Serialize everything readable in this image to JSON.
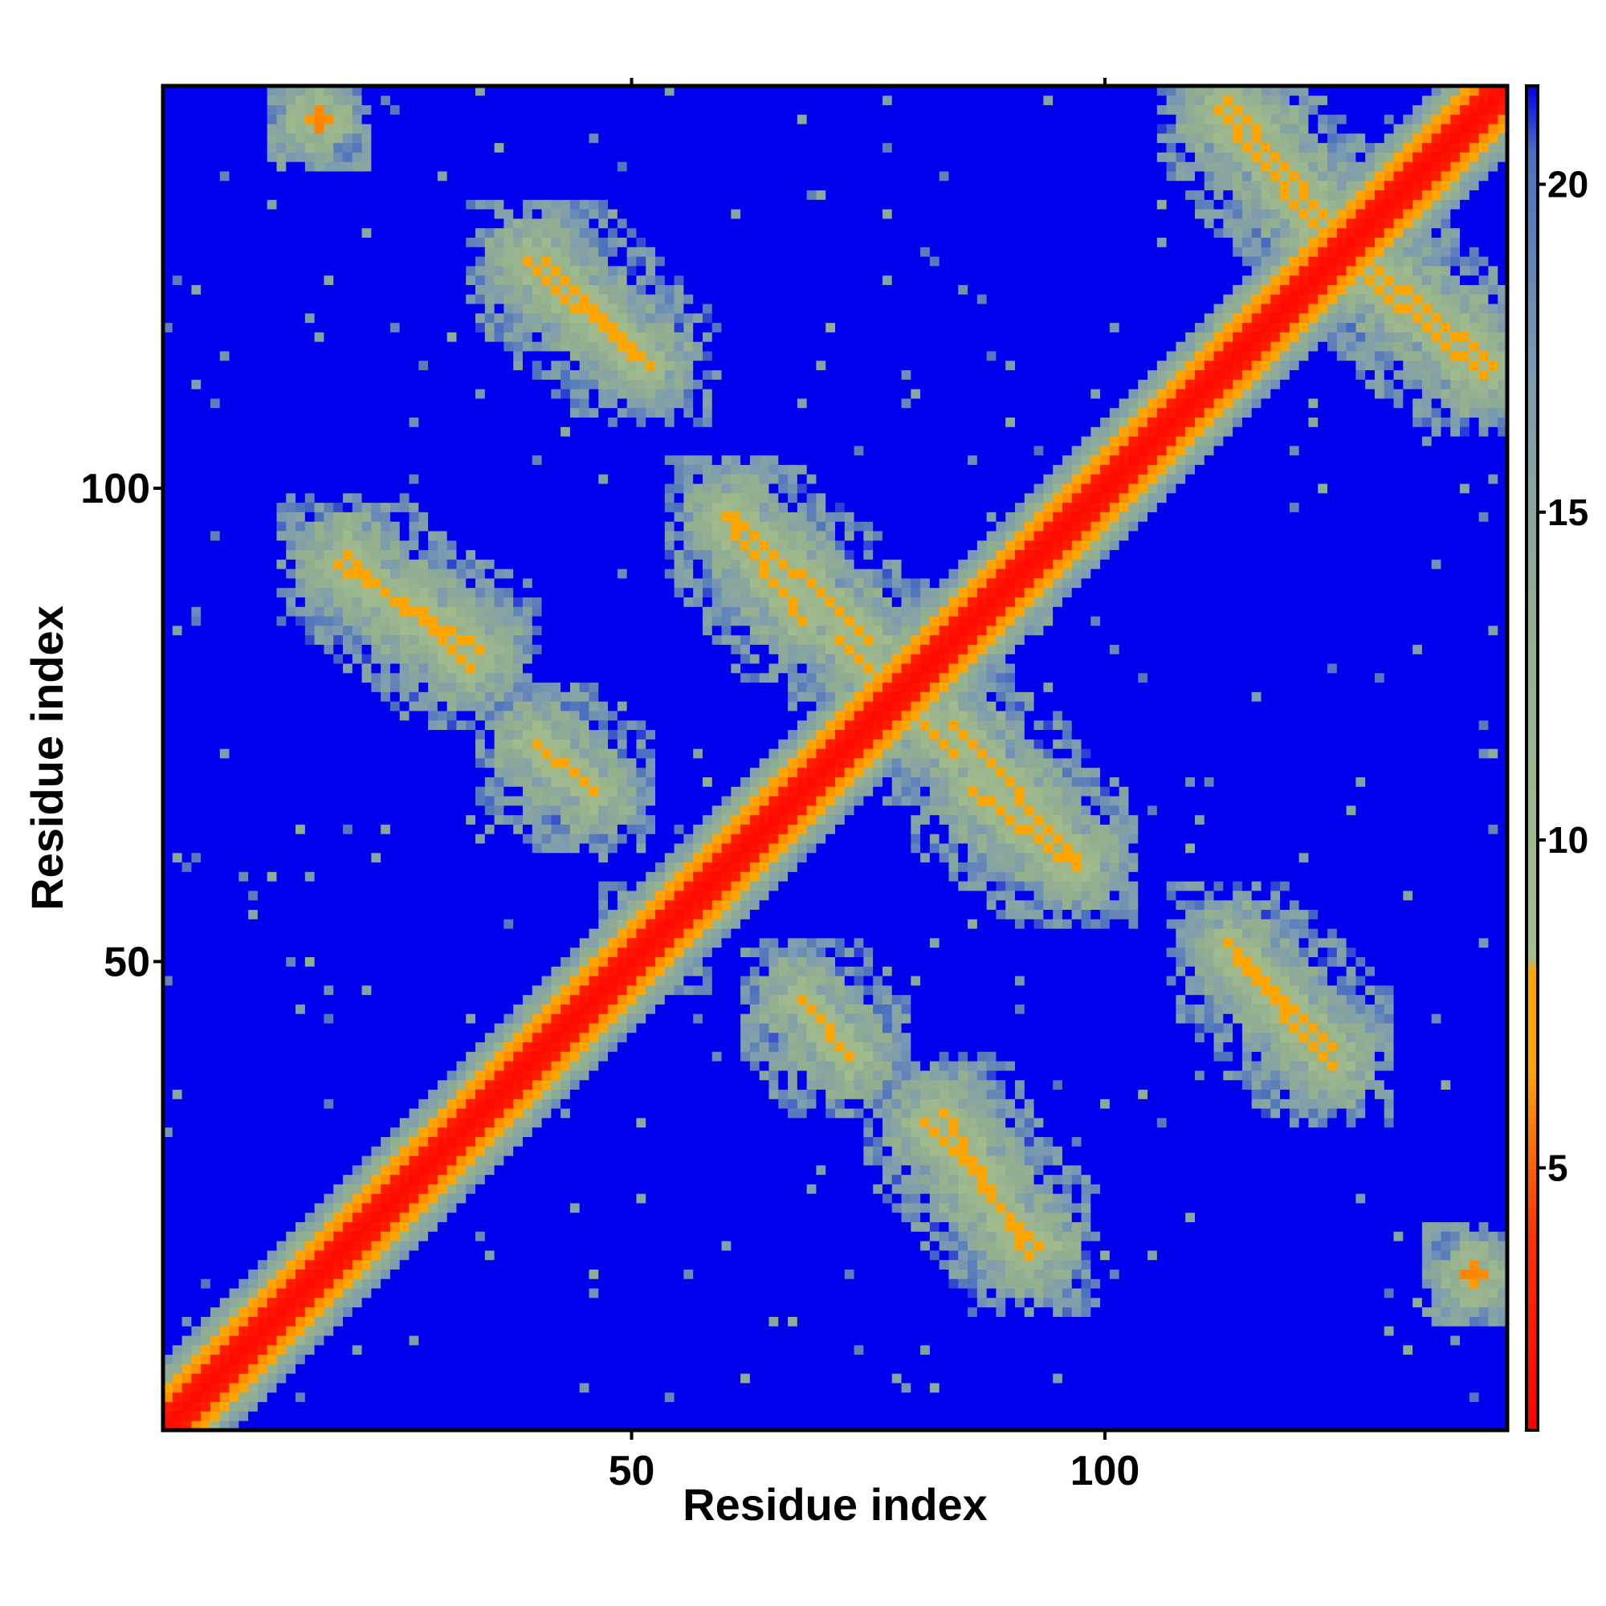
{
  "chart_data": {
    "type": "heatmap",
    "title": "",
    "xlabel": "Residue index",
    "ylabel": "Residue index",
    "x_range": [
      1,
      142
    ],
    "y_range": [
      1,
      142
    ],
    "x_ticks": [
      50,
      100
    ],
    "y_ticks": [
      50,
      100
    ],
    "colorbar": {
      "range": [
        1,
        21.5
      ],
      "ticks": [
        5,
        10,
        15,
        20
      ],
      "stops": [
        {
          "value": 1.0,
          "color": "#ff0000"
        },
        {
          "value": 4.0,
          "color": "#ff3300"
        },
        {
          "value": 6.5,
          "color": "#ffa500"
        },
        {
          "value": 8.0,
          "color": "#ffa500"
        },
        {
          "value": 8.2,
          "color": "#a5be8c"
        },
        {
          "value": 13.0,
          "color": "#93af8f"
        },
        {
          "value": 17.0,
          "color": "#7d9cb0"
        },
        {
          "value": 20.5,
          "color": "#4a6fc0"
        },
        {
          "value": 21.5,
          "color": "#0000ee"
        }
      ]
    },
    "grid_n": 142,
    "background_value": 22,
    "background_color": "#0000ee",
    "grid": false,
    "legend": "colorbar-right",
    "pattern": {
      "description": "symmetric residue distance map",
      "diagonal_core_width": 2,
      "features": [
        {
          "kind": "antidiagonal_band",
          "x": [
            41,
            52
          ],
          "y": [
            124,
            113
          ],
          "value": 6.5
        },
        {
          "kind": "antidiagonal_band",
          "x": [
            19,
            34
          ],
          "y": [
            92,
            83
          ],
          "value": 6.5
        },
        {
          "kind": "antidiagonal_band",
          "x": [
            61,
            75
          ],
          "y": [
            97,
            84
          ],
          "value": 6.5
        },
        {
          "kind": "antidiagonal_band",
          "x": [
            40,
            46
          ],
          "y": [
            73,
            68
          ],
          "value": 6.5
        },
        {
          "kind": "antidiagonal_band",
          "x": [
            113,
            124
          ],
          "y": [
            141,
            128
          ],
          "value": 6.5
        },
        {
          "kind": "antidiagonal_band",
          "x": [
            124,
            140
          ],
          "y": [
            125,
            112
          ],
          "value": 6.5
        },
        {
          "kind": "antidiagonal_band",
          "x": [
            79,
            84
          ],
          "y": [
            77,
            72
          ],
          "value": 6.5
        },
        {
          "kind": "antidiagonal_band",
          "x": [
            86,
            97
          ],
          "y": [
            68,
            60
          ],
          "value": 6.5
        },
        {
          "kind": "antidiagonal_band",
          "x": [
            68,
            73
          ],
          "y": [
            46,
            40
          ],
          "value": 6.5
        },
        {
          "kind": "antidiagonal_band",
          "x": [
            81,
            93
          ],
          "y": [
            33,
            20
          ],
          "value": 6.5
        },
        {
          "kind": "antidiagonal_band",
          "x": [
            114,
            124
          ],
          "y": [
            50,
            39
          ],
          "value": 6.5
        },
        {
          "kind": "blob",
          "x": 17,
          "y": 139,
          "value": 5.5
        },
        {
          "kind": "blob",
          "x": 139,
          "y": 17,
          "value": 5.5
        },
        {
          "kind": "blob",
          "x": 53,
          "y": 52,
          "value": 4.5
        }
      ]
    }
  }
}
